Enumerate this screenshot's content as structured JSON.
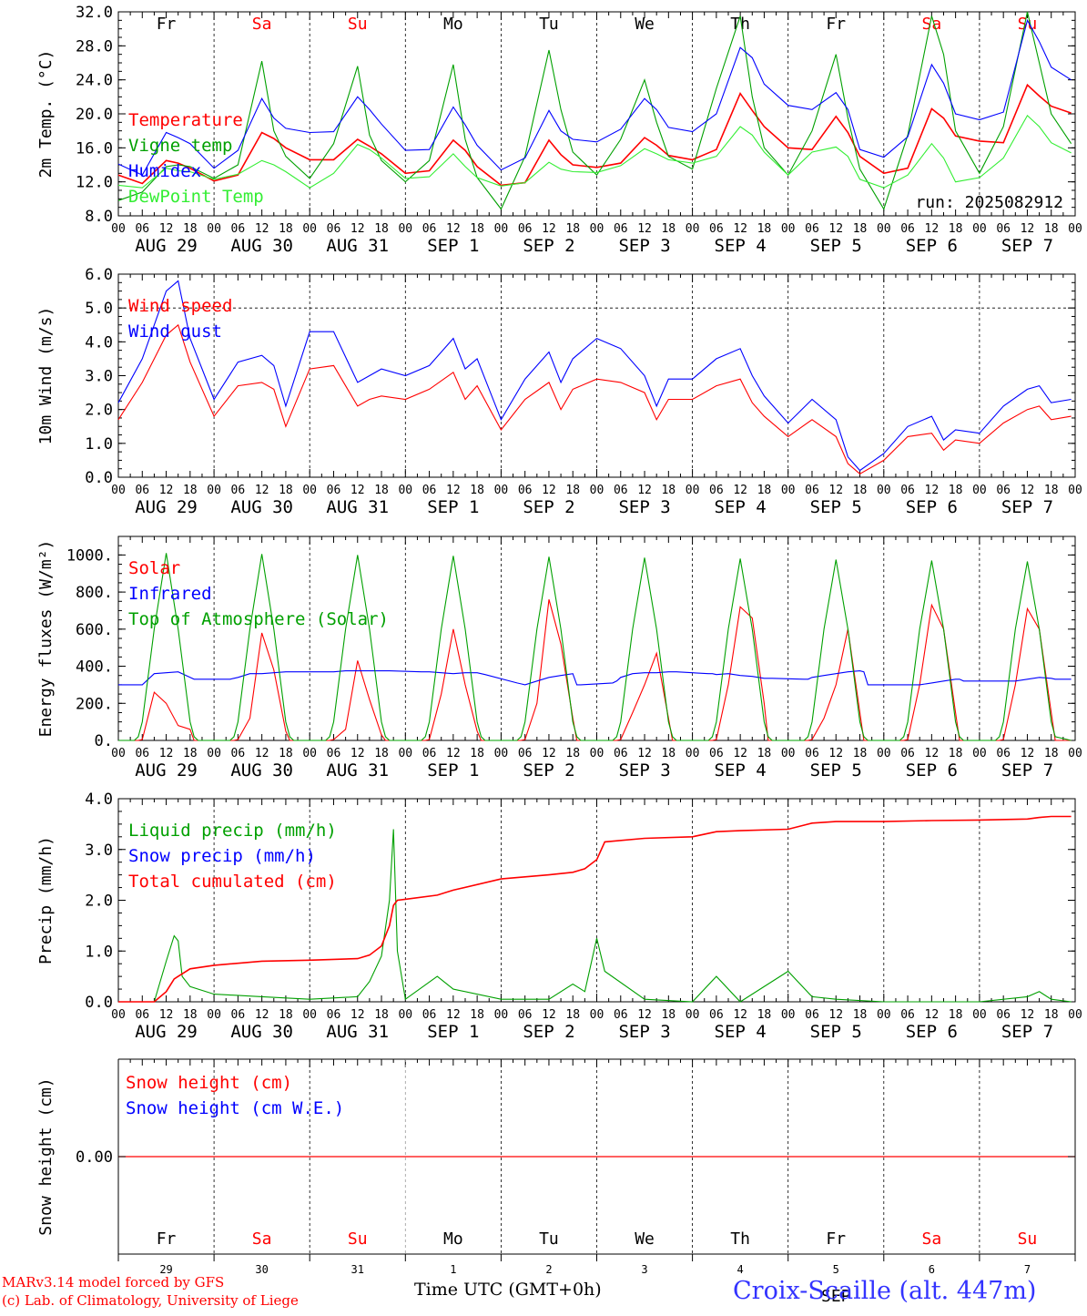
{
  "common": {
    "days": [
      "AUG 29",
      "AUG 30",
      "AUG 31",
      "SEP  1",
      "SEP  2",
      "SEP  3",
      "SEP  4",
      "SEP  5",
      "SEP  6",
      "SEP  7"
    ],
    "weekdays": [
      "Fr",
      "Sa",
      "Su",
      "Mo",
      "Tu",
      "We",
      "Th",
      "Fr",
      "Sa",
      "Su"
    ],
    "weekend_flags": [
      false,
      true,
      true,
      false,
      false,
      false,
      false,
      false,
      true,
      true
    ],
    "hour_ticks": [
      "00",
      "06",
      "12",
      "18"
    ],
    "hour_end_label": "00",
    "day_numbers": [
      "29",
      "30",
      "31",
      "1",
      "2",
      "3",
      "4",
      "5",
      "6",
      "7"
    ],
    "month_label": "SEP",
    "xlabel": "Time UTC (GMT+0h)",
    "colors": {
      "red": "#ff0000",
      "green": "#00a000",
      "blue": "#0000ff",
      "light_green": "#33ee33",
      "axis": "#000000",
      "weekend": "#ff0000"
    }
  },
  "footer": {
    "model_line": "MARv3.14 model forced by GFS",
    "copyright_line": "(c) Lab. of Climatology, University of Liege",
    "station": "Croix-Scaille (alt. 447m)"
  },
  "chart_data": [
    {
      "id": "temperature",
      "type": "line",
      "ylabel": "2m Temp. (°C)",
      "ylim": [
        8,
        32
      ],
      "yticks": [
        "8.0",
        "12.0",
        "16.0",
        "20.0",
        "24.0",
        "28.0",
        "32.0"
      ],
      "run_label": "run: 2025082912",
      "x_unit": "hours since 2025-08-29 00 UTC",
      "x": [
        0,
        6,
        12,
        15,
        18,
        24,
        30,
        36,
        39,
        42,
        48,
        54,
        60,
        63,
        66,
        72,
        78,
        84,
        87,
        90,
        96,
        102,
        108,
        111,
        114,
        120,
        126,
        132,
        135,
        138,
        144,
        150,
        156,
        159,
        162,
        168,
        174,
        180,
        183,
        186,
        192,
        198,
        204,
        207,
        210,
        216,
        222,
        228,
        231,
        234,
        239
      ],
      "series": [
        {
          "name": "Temperature",
          "color": "#ff0000",
          "values": [
            12.8,
            11.8,
            14.5,
            14.2,
            13.6,
            12.1,
            12.8,
            17.8,
            17.1,
            16.0,
            14.6,
            14.6,
            17.0,
            16.2,
            15.3,
            13.0,
            13.3,
            16.9,
            15.7,
            13.8,
            11.6,
            11.9,
            16.9,
            15.2,
            14.0,
            13.7,
            14.2,
            17.2,
            16.3,
            15.1,
            14.6,
            15.8,
            22.4,
            20.4,
            18.5,
            16.0,
            15.8,
            19.7,
            17.8,
            15.0,
            13.0,
            13.6,
            20.6,
            19.5,
            17.4,
            16.8,
            16.6,
            23.4,
            22.1,
            20.9,
            20.1
          ]
        },
        {
          "name": "Vigne temp",
          "color": "#00a000",
          "values": [
            9.8,
            10.8,
            13.8,
            14.0,
            13.8,
            12.4,
            14.0,
            26.2,
            18.0,
            15.0,
            12.4,
            16.5,
            25.6,
            17.5,
            14.5,
            12.0,
            14.5,
            25.8,
            17.0,
            12.5,
            8.8,
            15.0,
            27.5,
            20.5,
            15.5,
            12.8,
            17.0,
            24.0,
            19.0,
            15.0,
            13.5,
            23.0,
            31.5,
            22.0,
            16.0,
            12.8,
            18.0,
            27.0,
            19.5,
            13.5,
            8.8,
            17.5,
            31.5,
            27.0,
            18.0,
            13.0,
            18.5,
            32.0,
            26.0,
            20.0,
            16.5
          ]
        },
        {
          "name": "Humidex",
          "color": "#0000ff",
          "values": [
            14.1,
            12.8,
            17.8,
            17.2,
            16.5,
            13.6,
            15.7,
            21.8,
            19.5,
            18.3,
            17.8,
            17.9,
            22.0,
            20.5,
            18.8,
            15.7,
            15.8,
            20.8,
            18.7,
            16.3,
            13.4,
            14.8,
            20.4,
            18.0,
            17.0,
            16.7,
            18.2,
            21.8,
            20.5,
            18.4,
            17.9,
            20.0,
            27.8,
            26.6,
            23.5,
            21.0,
            20.5,
            22.5,
            20.5,
            15.8,
            14.9,
            17.3,
            25.8,
            23.6,
            20.0,
            19.3,
            20.2,
            31.0,
            28.5,
            25.5,
            24.0
          ]
        },
        {
          "name": "DewPoint Temp",
          "color": "#33ee33",
          "values": [
            11.6,
            11.3,
            13.6,
            13.3,
            13.2,
            12.3,
            12.9,
            14.5,
            14.0,
            13.2,
            11.3,
            13.0,
            16.4,
            15.8,
            14.8,
            12.4,
            12.6,
            15.3,
            13.8,
            12.5,
            11.5,
            11.9,
            14.3,
            13.5,
            13.2,
            13.1,
            13.9,
            15.9,
            15.3,
            14.6,
            14.2,
            15.0,
            18.5,
            17.5,
            15.5,
            12.8,
            15.5,
            16.1,
            15.0,
            12.3,
            11.3,
            12.8,
            16.5,
            14.8,
            12.0,
            12.5,
            14.8,
            19.8,
            18.5,
            16.6,
            15.4
          ]
        }
      ]
    },
    {
      "id": "wind",
      "type": "line",
      "ylabel": "10m Wind (m/s)",
      "ylim": [
        0,
        6
      ],
      "yticks": [
        "0.0",
        "1.0",
        "2.0",
        "3.0",
        "4.0",
        "5.0",
        "6.0"
      ],
      "ref_line": 5,
      "x_unit": "hours since 2025-08-29 00 UTC",
      "x": [
        0,
        6,
        12,
        15,
        18,
        24,
        30,
        36,
        39,
        42,
        48,
        54,
        60,
        63,
        66,
        72,
        78,
        84,
        87,
        90,
        96,
        102,
        108,
        111,
        114,
        120,
        126,
        132,
        135,
        138,
        144,
        150,
        156,
        159,
        162,
        168,
        174,
        180,
        183,
        186,
        192,
        198,
        204,
        207,
        210,
        216,
        222,
        228,
        231,
        234,
        239
      ],
      "series": [
        {
          "name": "Wind speed",
          "color": "#ff0000",
          "values": [
            1.7,
            2.8,
            4.2,
            4.5,
            3.4,
            1.8,
            2.7,
            2.8,
            2.6,
            1.5,
            3.2,
            3.3,
            2.1,
            2.3,
            2.4,
            2.3,
            2.6,
            3.1,
            2.3,
            2.7,
            1.4,
            2.3,
            2.8,
            2.0,
            2.6,
            2.9,
            2.8,
            2.5,
            1.7,
            2.3,
            2.3,
            2.7,
            2.9,
            2.2,
            1.8,
            1.2,
            1.7,
            1.2,
            0.4,
            0.1,
            0.5,
            1.2,
            1.3,
            0.8,
            1.1,
            1.0,
            1.6,
            2.0,
            2.1,
            1.7,
            1.8
          ]
        },
        {
          "name": "Wind gust",
          "color": "#0000ff",
          "values": [
            2.2,
            3.5,
            5.5,
            5.8,
            4.1,
            2.3,
            3.4,
            3.6,
            3.3,
            2.1,
            4.3,
            4.3,
            2.8,
            3.0,
            3.2,
            3.0,
            3.3,
            4.1,
            3.2,
            3.5,
            1.7,
            2.9,
            3.7,
            2.8,
            3.5,
            4.1,
            3.8,
            3.0,
            2.1,
            2.9,
            2.9,
            3.5,
            3.8,
            3.0,
            2.4,
            1.6,
            2.3,
            1.7,
            0.6,
            0.2,
            0.7,
            1.5,
            1.8,
            1.1,
            1.4,
            1.3,
            2.1,
            2.6,
            2.7,
            2.2,
            2.3
          ]
        }
      ]
    },
    {
      "id": "energy",
      "type": "line",
      "ylabel": "Energy fluxes (W/m²)",
      "ylim": [
        0,
        1100
      ],
      "yticks": [
        "0.",
        "200.",
        "400.",
        "600.",
        "800.",
        "1000."
      ],
      "x_unit": "hours since 2025-08-29 00 UTC",
      "x": [
        0,
        4,
        5,
        6,
        9,
        12,
        15,
        18,
        19,
        20,
        28,
        29,
        30,
        33,
        36,
        39,
        42,
        43,
        44,
        52,
        53,
        54,
        57,
        60,
        63,
        66,
        67,
        68,
        76,
        77,
        78,
        81,
        84,
        87,
        90,
        91,
        92,
        100,
        101,
        102,
        105,
        108,
        111,
        114,
        115,
        116,
        124,
        125,
        126,
        129,
        132,
        135,
        138,
        139,
        140,
        148,
        149,
        150,
        153,
        156,
        159,
        162,
        163,
        164,
        172,
        173,
        174,
        177,
        180,
        183,
        186,
        187,
        188,
        196,
        197,
        198,
        201,
        204,
        207,
        210,
        211,
        212,
        220,
        221,
        222,
        225,
        228,
        231,
        234,
        235,
        239
      ],
      "series": [
        {
          "name": "Solar",
          "color": "#ff0000",
          "values": [
            0,
            0,
            0,
            5,
            260,
            200,
            80,
            60,
            0,
            0,
            0,
            0,
            5,
            120,
            580,
            380,
            50,
            0,
            0,
            0,
            0,
            5,
            60,
            430,
            220,
            30,
            0,
            0,
            0,
            0,
            5,
            250,
            600,
            300,
            50,
            0,
            0,
            0,
            0,
            5,
            200,
            760,
            520,
            120,
            0,
            0,
            0,
            0,
            5,
            150,
            300,
            470,
            120,
            0,
            0,
            0,
            0,
            5,
            300,
            720,
            660,
            200,
            0,
            0,
            0,
            0,
            5,
            120,
            300,
            600,
            150,
            0,
            0,
            0,
            0,
            5,
            300,
            730,
            600,
            150,
            0,
            0,
            0,
            0,
            5,
            300,
            710,
            600,
            150,
            0,
            0
          ]
        },
        {
          "name": "Infrared",
          "color": "#0000ff",
          "values": [
            300,
            300,
            300,
            300,
            360,
            365,
            370,
            340,
            330,
            330,
            330,
            335,
            340,
            360,
            360,
            365,
            370,
            370,
            370,
            370,
            370,
            370,
            375,
            375,
            375,
            375,
            375,
            375,
            370,
            370,
            370,
            365,
            360,
            365,
            365,
            360,
            355,
            310,
            305,
            300,
            320,
            340,
            350,
            360,
            300,
            300,
            310,
            320,
            340,
            360,
            365,
            365,
            370,
            370,
            370,
            360,
            360,
            355,
            360,
            350,
            345,
            335,
            335,
            335,
            330,
            330,
            340,
            350,
            360,
            370,
            375,
            370,
            300,
            300,
            300,
            300,
            300,
            310,
            320,
            330,
            330,
            320,
            320,
            320,
            320,
            320,
            330,
            340,
            335,
            330,
            330
          ]
        },
        {
          "name": "Top of Atmosphere (Solar)",
          "color": "#00a000",
          "values": [
            0,
            0,
            20,
            100,
            600,
            1010,
            600,
            100,
            20,
            0,
            0,
            20,
            100,
            600,
            1005,
            600,
            100,
            20,
            0,
            0,
            20,
            100,
            600,
            1000,
            600,
            100,
            20,
            0,
            0,
            20,
            100,
            600,
            995,
            600,
            100,
            20,
            0,
            0,
            20,
            100,
            600,
            990,
            600,
            100,
            20,
            0,
            0,
            20,
            100,
            600,
            985,
            600,
            100,
            20,
            0,
            0,
            20,
            100,
            600,
            980,
            600,
            100,
            20,
            0,
            0,
            20,
            100,
            600,
            975,
            600,
            100,
            20,
            0,
            0,
            20,
            100,
            600,
            970,
            600,
            100,
            20,
            0,
            0,
            20,
            100,
            600,
            965,
            600,
            100,
            20,
            0
          ]
        }
      ]
    },
    {
      "id": "precip",
      "type": "line",
      "ylabel": "Precip (mm/h)",
      "ylim": [
        0,
        4
      ],
      "yticks": [
        "0.0",
        "1.0",
        "2.0",
        "3.0",
        "4.0"
      ],
      "x_unit": "hours since 2025-08-29 00 UTC",
      "x": [
        0,
        9,
        12,
        14,
        15,
        16,
        18,
        24,
        36,
        48,
        60,
        63,
        66,
        68,
        69,
        70,
        72,
        80,
        84,
        96,
        108,
        114,
        117,
        120,
        122,
        132,
        144,
        150,
        156,
        168,
        174,
        180,
        192,
        204,
        216,
        228,
        231,
        234,
        239
      ],
      "series": [
        {
          "name": "Liquid precip (mm/h)",
          "color": "#00a000",
          "values": [
            0,
            0,
            0.8,
            1.3,
            1.2,
            0.5,
            0.3,
            0.15,
            0.1,
            0.05,
            0.1,
            0.4,
            0.9,
            2.0,
            3.4,
            1.0,
            0.05,
            0.5,
            0.25,
            0.05,
            0.05,
            0.35,
            0.2,
            1.25,
            0.6,
            0.05,
            0,
            0.5,
            0,
            0.6,
            0.1,
            0.05,
            0,
            0,
            0,
            0.1,
            0.2,
            0.05,
            0
          ]
        },
        {
          "name": "Total cumulated (cm)",
          "color": "#ff0000",
          "values": [
            0,
            0,
            0.2,
            0.45,
            0.5,
            0.55,
            0.65,
            0.72,
            0.8,
            0.82,
            0.85,
            0.92,
            1.1,
            1.5,
            1.9,
            2.0,
            2.02,
            2.1,
            2.2,
            2.42,
            2.5,
            2.55,
            2.62,
            2.8,
            3.15,
            3.22,
            3.25,
            3.35,
            3.37,
            3.4,
            3.52,
            3.55,
            3.55,
            3.57,
            3.58,
            3.6,
            3.63,
            3.65,
            3.65
          ]
        }
      ],
      "legend_extra": {
        "name": "Snow precip (mm/h)",
        "color": "#0000ff"
      }
    },
    {
      "id": "snow",
      "type": "line",
      "ylabel": "Snow height (cm)",
      "yticks": [
        "0.00"
      ],
      "series": [
        {
          "name": "Snow height (cm)",
          "color": "#ff0000",
          "values": [
            0
          ]
        },
        {
          "name": "Snow height (cm W.E.)",
          "color": "#0000ff",
          "values": [
            0
          ]
        }
      ]
    }
  ]
}
